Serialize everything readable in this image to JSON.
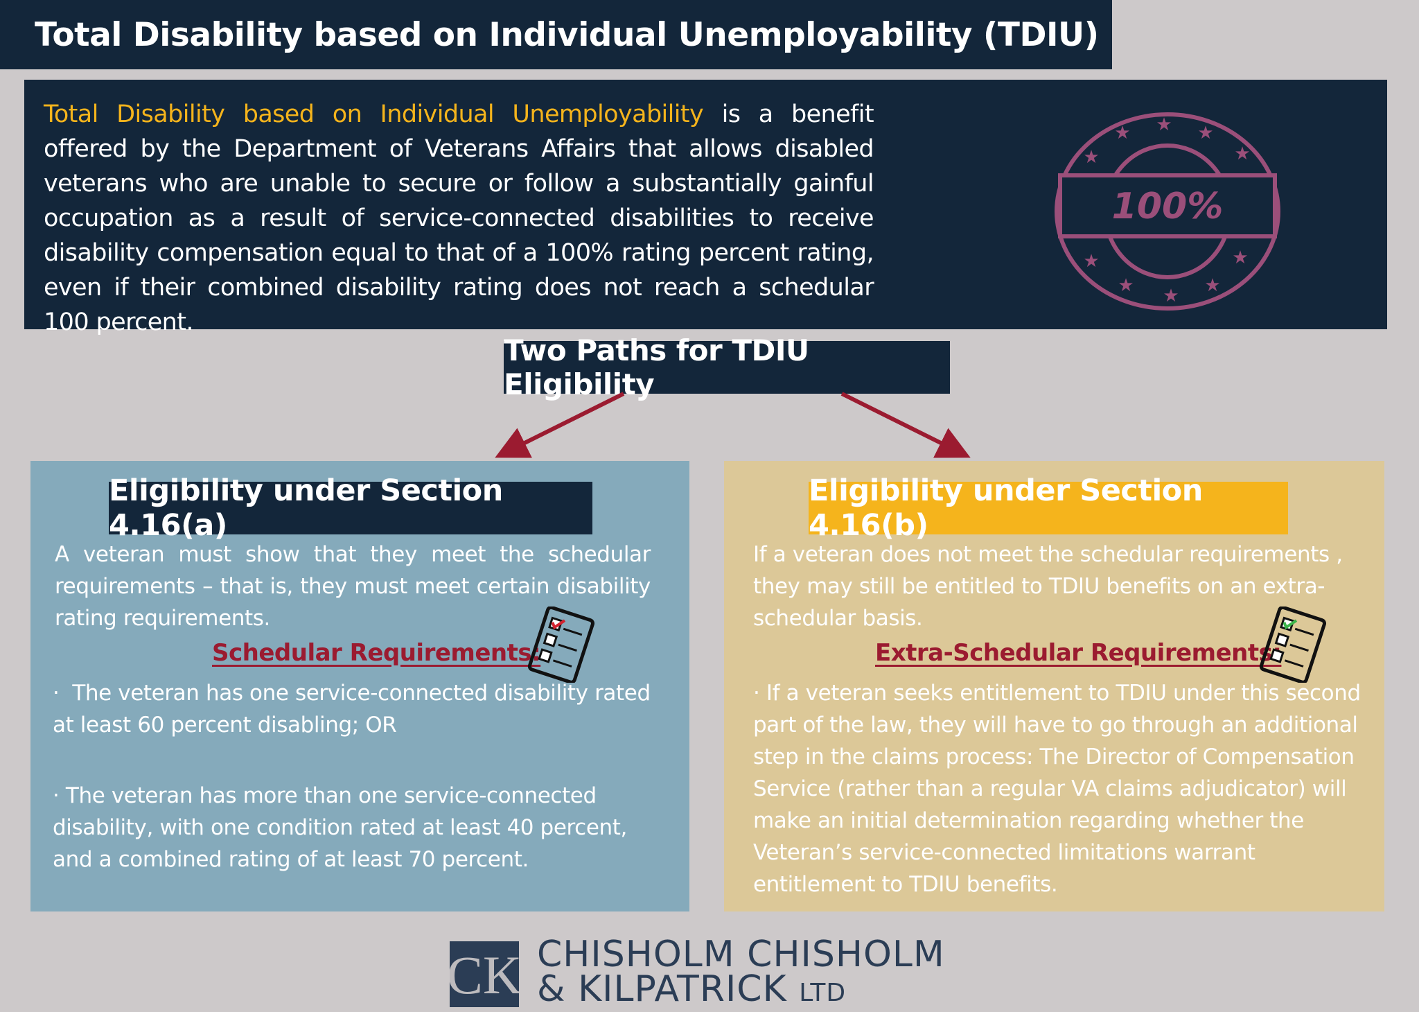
{
  "title": "Total Disability based on Individual Unemployability (TDIU)",
  "description": {
    "highlight": "Total Disability based on Individual Unemployability",
    "text": " is a benefit offered by the Department of Veterans Affairs that allows disabled veterans who are unable to secure or follow a substantially gainful occupation as a result of service-connected disabilities to receive disability compensation equal to that of a 100% rating percent rating, even if their combined disability rating does not reach a schedular 100 percent.",
    "stamp_text": "100%"
  },
  "paths_heading": "Two Paths for TDIU Eligibility",
  "left": {
    "heading": "Eligibility under Section 4.16(a)",
    "intro": "A veteran must show that they meet the schedular requirements – that is, they must meet certain disability rating requirements.",
    "req_title": "Schedular Requirements:",
    "bullets": [
      "The veteran has one service-connected disability rated at least 60 percent disabling; OR",
      "The veteran has more than one service-connected disability, with one condition rated at least 40 percent, and a combined rating of at least 70 percent."
    ]
  },
  "right": {
    "heading": "Eligibility under Section 4.16(b)",
    "intro": "If a veteran does not meet the schedular requirements , they may still be entitled to TDIU benefits on an extra-schedular basis.",
    "req_title": "Extra-Schedular Requirements:",
    "bullets": [
      "If a veteran seeks entitlement to TDIU under this second part of the law, they will have to go through an additional step in the claims process: The Director of Compensation Service (rather than a regular VA claims adjudicator) will make an initial determination regarding whether the Veteran’s service-connected limitations warrant entitlement to TDIU benefits."
    ]
  },
  "logo": {
    "mark": "CCK",
    "line1": "CHISHOLM CHISHOLM",
    "line2": "& KILPATRICK",
    "suffix": "LTD"
  },
  "colors": {
    "navy": "#13263a",
    "yellow": "#f5b41c",
    "red": "#9b1b30",
    "blue_panel": "#85aabb",
    "tan_panel": "#dcc898",
    "stamp": "#9b4f7a"
  }
}
